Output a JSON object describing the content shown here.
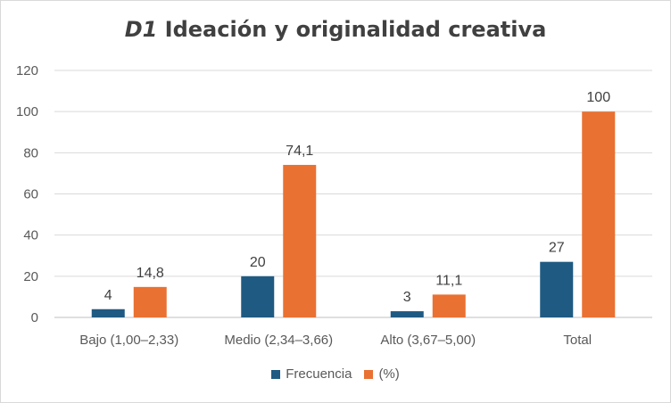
{
  "chart_data": {
    "type": "bar",
    "title_prefix": "D1",
    "title_rest": "Ideación y originalidad creativa",
    "categories": [
      "Bajo (1,00–2,33)",
      "Medio (2,34–3,66)",
      "Alto (3,67–5,00)",
      "Total"
    ],
    "series": [
      {
        "name": "Frecuencia",
        "values": [
          4,
          20,
          3,
          27
        ],
        "labels": [
          "4",
          "20",
          "3",
          "27"
        ],
        "color": "#1f5a82"
      },
      {
        "name": "(%)",
        "values": [
          14.8,
          74.1,
          11.1,
          100
        ],
        "labels": [
          "14,8",
          "74,1",
          "11,1",
          "100"
        ],
        "color": "#e97132"
      }
    ],
    "ylim": [
      0,
      120
    ],
    "yticks": [
      0,
      20,
      40,
      60,
      80,
      100,
      120
    ],
    "grid": true,
    "legend_position": "bottom"
  }
}
